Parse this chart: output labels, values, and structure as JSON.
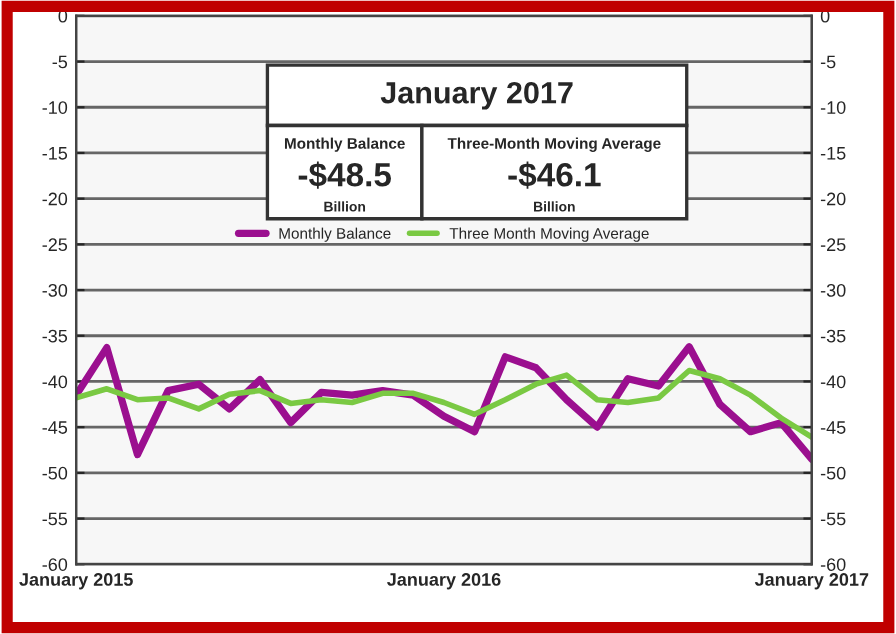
{
  "chart_data": {
    "type": "line",
    "categories": [
      "January 2015",
      null,
      null,
      null,
      null,
      null,
      null,
      null,
      null,
      null,
      null,
      null,
      "January 2016",
      null,
      null,
      null,
      null,
      null,
      null,
      null,
      null,
      null,
      null,
      null,
      "January 2017"
    ],
    "series": [
      {
        "name": "Monthly Balance",
        "color": "#9b0f8f",
        "values": [
          -41.5,
          -36.3,
          -48,
          -41,
          -40.3,
          -43,
          -39.8,
          -44.5,
          -41.2,
          -41.5,
          -41,
          -41.5,
          -43.8,
          -45.5,
          -37.3,
          -38.5,
          -42,
          -45,
          -39.7,
          -40.5,
          -36.2,
          -42.5,
          -45.5,
          -44.5,
          -48.5
        ]
      },
      {
        "name": "Three Month Moving Average",
        "color": "#7ac943",
        "values": [
          -41.8,
          -40.8,
          -42,
          -41.8,
          -43,
          -41.4,
          -41,
          -42.4,
          -42,
          -42.3,
          -41.3,
          -41.3,
          -42.3,
          -43.6,
          -42,
          -40.3,
          -39.3,
          -42,
          -42.3,
          -41.8,
          -38.8,
          -39.7,
          -41.5,
          -44,
          -46.1
        ]
      }
    ],
    "ylim": [
      -60,
      0
    ],
    "yticks": [
      -60,
      -55,
      -50,
      -45,
      -40,
      -35,
      -30,
      -25,
      -20,
      -15,
      -10,
      -5,
      0
    ],
    "y2lim": [
      -60,
      0
    ],
    "y2ticks": [
      -60,
      -55,
      -50,
      -45,
      -40,
      -35,
      -30,
      -25,
      -20,
      -15,
      -10,
      -5,
      0
    ],
    "annotations": [
      "January 2017",
      "Monthly Balance",
      "-$48.5",
      "Billion",
      "Three-Month Moving Average",
      "-$46.1",
      "Billion"
    ],
    "grid": "y",
    "legend": "top",
    "marker": "none",
    "line_style": "solid"
  }
}
